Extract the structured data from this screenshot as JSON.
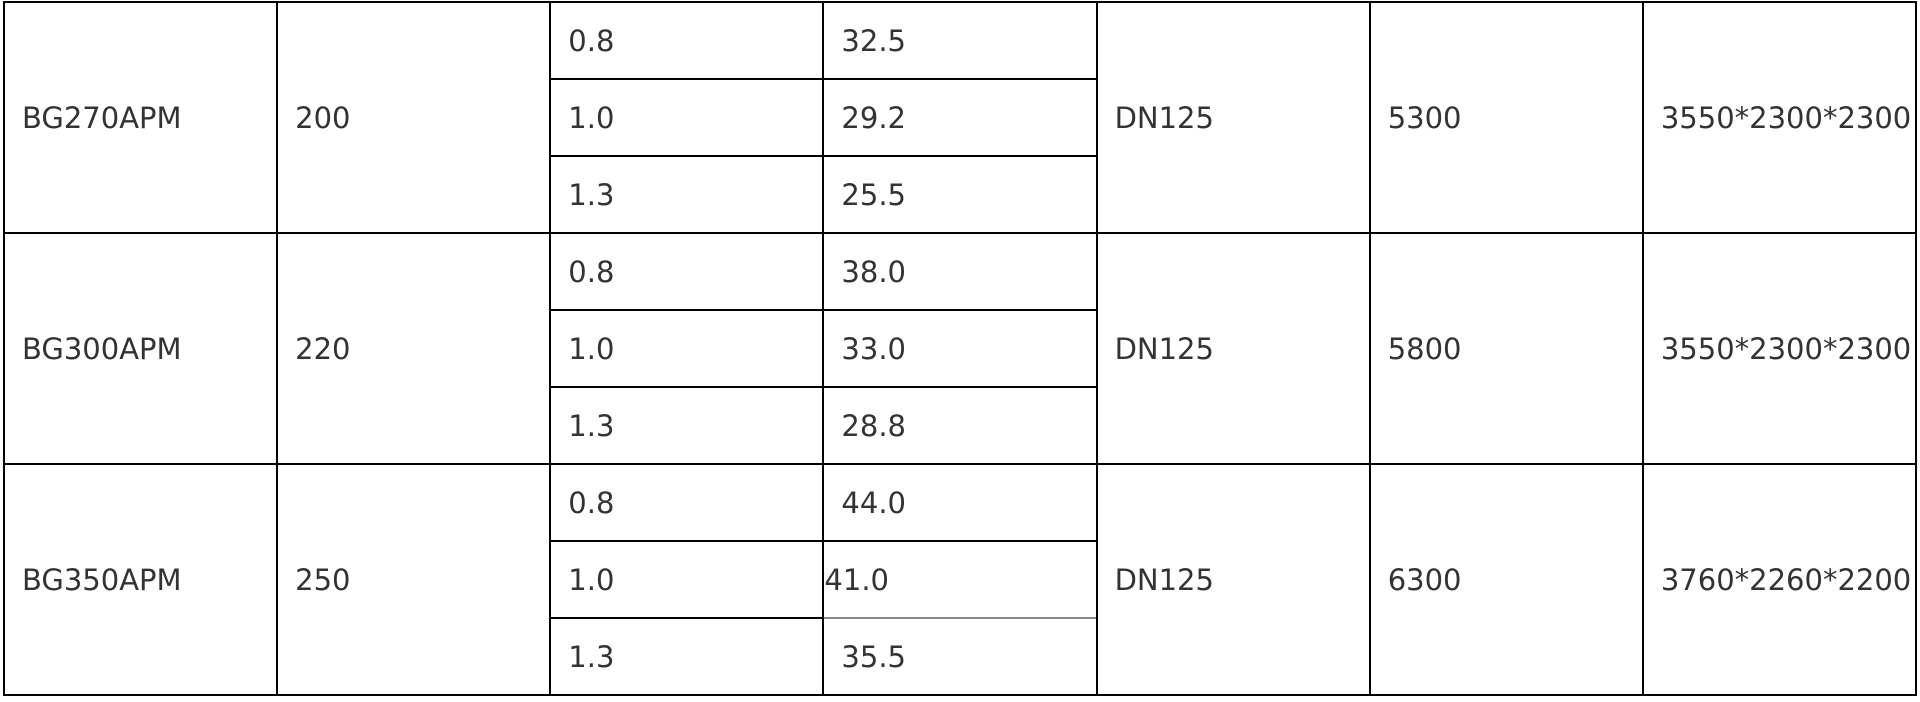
{
  "rows": [
    {
      "model": "BG270APM",
      "value": "200",
      "sub": [
        [
          "0.8",
          "32.5"
        ],
        [
          "1.0",
          "29.2"
        ],
        [
          "1.3",
          "25.5"
        ]
      ],
      "dn": "DN125",
      "weight": "5300",
      "dims": "3550*2300*2300"
    },
    {
      "model": "BG300APM",
      "value": "220",
      "sub": [
        [
          "0.8",
          "38.0"
        ],
        [
          "1.0",
          "33.0"
        ],
        [
          "1.3",
          "28.8"
        ]
      ],
      "dn": "DN125",
      "weight": "5800",
      "dims": "3550*2300*2300"
    },
    {
      "model": "BG350APM",
      "value": "250",
      "sub": [
        [
          "0.8",
          "44.0"
        ],
        [
          "1.0",
          "41.0"
        ],
        [
          "1.3",
          "35.5"
        ]
      ],
      "dn": "DN125",
      "weight": "6300",
      "dims": "3760*2260*2200"
    }
  ]
}
